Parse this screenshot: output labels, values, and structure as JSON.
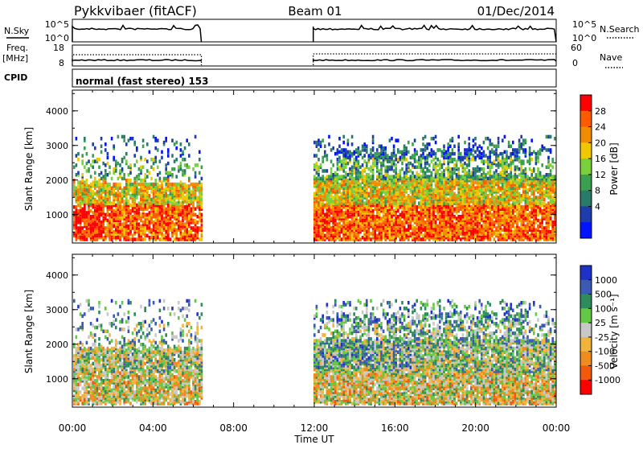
{
  "header": {
    "station": "Pykkvibaer (fitACF)",
    "beam": "Beam 01",
    "date": "01/Dec/2014"
  },
  "side_labels": {
    "nsky": "N.Sky",
    "freq_line1": "Freq.",
    "freq_line2": "[MHz]",
    "cpid": "CPID",
    "nsearch": "N.Search",
    "nave": "Nave"
  },
  "top_panels": {
    "noise_ticks_left": [
      "10^5",
      "10^0"
    ],
    "noise_ticks_right": [
      "10^5",
      "10^0"
    ],
    "freq_ticks": [
      "18",
      "8"
    ],
    "nave_ticks": [
      "60",
      "0"
    ],
    "cpid_text": "normal (fast stereo) 153"
  },
  "chart_data": [
    {
      "type": "heatmap",
      "panel": "power",
      "ylabel": "Slant Range [km]",
      "yticks": [
        "4000",
        "3000",
        "2000",
        "1000"
      ],
      "ylim": [
        180,
        4600
      ],
      "xlim_hours": [
        0,
        24
      ],
      "colorbar_label": "Power [dB]",
      "colorbar_ticks": [
        "28",
        "24",
        "20",
        "16",
        "12",
        "8",
        "4"
      ],
      "colorbar_colors": [
        "#ff0000",
        "#ff5a00",
        "#f08c00",
        "#f0c800",
        "#7ad03c",
        "#3aa050",
        "#2a7a6a",
        "#1e3caa",
        "#0014ff"
      ],
      "observation_blocks_hours": [
        [
          0,
          6.4
        ],
        [
          11.95,
          24
        ]
      ]
    },
    {
      "type": "heatmap",
      "panel": "velocity",
      "ylabel": "Slant Range [km]",
      "yticks": [
        "4000",
        "3000",
        "2000",
        "1000"
      ],
      "ylim": [
        180,
        4600
      ],
      "xlim_hours": [
        0,
        24
      ],
      "colorbar_label": "Velocity [m s⁻¹]",
      "colorbar_ticks": [
        "1000",
        "500",
        "100",
        "25",
        "-25",
        "-100",
        "-500",
        "-1000"
      ],
      "colorbar_colors": [
        "#1e32c8",
        "#3c5ab4",
        "#2e8c5a",
        "#64c846",
        "#c8c8c8",
        "#f0b43c",
        "#f08c1e",
        "#f05a0a",
        "#ff0000"
      ],
      "observation_blocks_hours": [
        [
          0,
          6.4
        ],
        [
          11.95,
          24
        ]
      ]
    }
  ],
  "x_axis": {
    "ticks": [
      "00:00",
      "04:00",
      "08:00",
      "12:00",
      "16:00",
      "20:00",
      "00:00"
    ],
    "label": "Time UT"
  }
}
